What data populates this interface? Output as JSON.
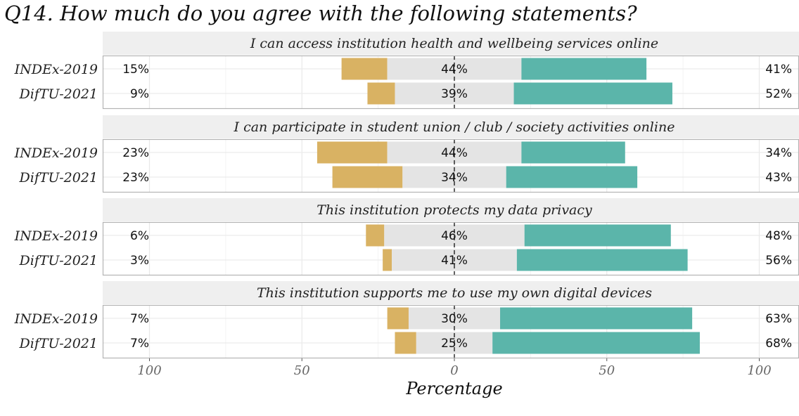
{
  "chart_data": {
    "type": "bar",
    "subtype": "diverging-stacked-likert",
    "title": "Q14. How much do you agree with the following statements?",
    "xlabel": "Percentage",
    "xlim": [
      -100,
      100
    ],
    "xticks": [
      -100,
      -50,
      0,
      50,
      100
    ],
    "xtick_labels": [
      "100",
      "50",
      "0",
      "50",
      "100"
    ],
    "grid": true,
    "legend": "none",
    "colors": {
      "disagree": "#d9b263",
      "neutral": "#e4e4e4",
      "agree": "#5bb5aa",
      "strip_bg": "#efefef",
      "panel_border": "#b3b3b3"
    },
    "panels": [
      {
        "statement": "I can access institution health and wellbeing services online",
        "rows": [
          {
            "group": "INDEx-2019",
            "disagree": 15,
            "neutral": 44,
            "agree": 41,
            "disagree_label": "15%",
            "neutral_label": "44%",
            "agree_label": "41%"
          },
          {
            "group": "DifTU-2021",
            "disagree": 9,
            "neutral": 39,
            "agree": 52,
            "disagree_label": "9%",
            "neutral_label": "39%",
            "agree_label": "52%"
          }
        ]
      },
      {
        "statement": "I can participate in student union / club / society activities online",
        "rows": [
          {
            "group": "INDEx-2019",
            "disagree": 23,
            "neutral": 44,
            "agree": 34,
            "disagree_label": "23%",
            "neutral_label": "44%",
            "agree_label": "34%"
          },
          {
            "group": "DifTU-2021",
            "disagree": 23,
            "neutral": 34,
            "agree": 43,
            "disagree_label": "23%",
            "neutral_label": "34%",
            "agree_label": "43%"
          }
        ]
      },
      {
        "statement": "This institution protects my data privacy",
        "rows": [
          {
            "group": "INDEx-2019",
            "disagree": 6,
            "neutral": 46,
            "agree": 48,
            "disagree_label": "6%",
            "neutral_label": "46%",
            "agree_label": "48%"
          },
          {
            "group": "DifTU-2021",
            "disagree": 3,
            "neutral": 41,
            "agree": 56,
            "disagree_label": "3%",
            "neutral_label": "41%",
            "agree_label": "56%"
          }
        ]
      },
      {
        "statement": "This institution supports me to use my own digital devices",
        "rows": [
          {
            "group": "INDEx-2019",
            "disagree": 7,
            "neutral": 30,
            "agree": 63,
            "disagree_label": "7%",
            "neutral_label": "30%",
            "agree_label": "63%"
          },
          {
            "group": "DifTU-2021",
            "disagree": 7,
            "neutral": 25,
            "agree": 68,
            "disagree_label": "7%",
            "neutral_label": "25%",
            "agree_label": "68%"
          }
        ]
      }
    ]
  }
}
